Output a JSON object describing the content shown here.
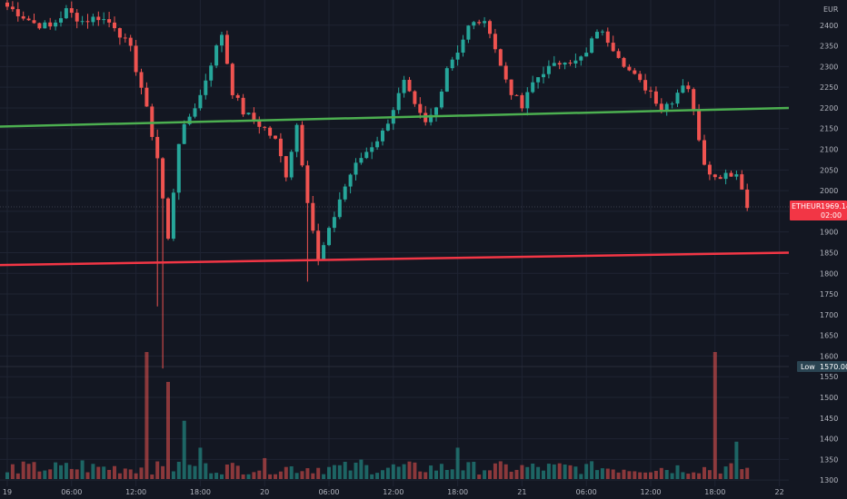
{
  "currency": "EUR",
  "symbol_badge": {
    "label": "ETHEUR",
    "price": "1969.14",
    "countdown": "02:00",
    "color": "#f23645"
  },
  "low_badge": {
    "label": "Low",
    "price": "1570.00",
    "color": "#2a4452"
  },
  "colors": {
    "up": "#26a69a",
    "down": "#ef5350",
    "background": "#131722",
    "grid": "#1f2433"
  },
  "chart_data": {
    "type": "candlestick",
    "title": "",
    "ylim": [
      1285,
      2450
    ],
    "y_ticks": [
      1300,
      1350,
      1400,
      1450,
      1500,
      1550,
      1600,
      1650,
      1700,
      1750,
      1800,
      1850,
      1900,
      1950,
      2000,
      2050,
      2100,
      2150,
      2200,
      2250,
      2300,
      2350,
      2400
    ],
    "x_ticks": [
      "19",
      "06:00",
      "12:00",
      "18:00",
      "20",
      "06:00",
      "12:00",
      "18:00",
      "21",
      "06:00",
      "12:00",
      "18:00",
      "22"
    ],
    "x_tick_index": [
      0,
      12,
      24,
      36,
      48,
      60,
      72,
      84,
      96,
      108,
      120,
      132,
      144
    ],
    "price_path_index": [
      0,
      2,
      5,
      8,
      11,
      14,
      17,
      20,
      23,
      25,
      28,
      30,
      32,
      34,
      36,
      38,
      40,
      42,
      44,
      46,
      48,
      50,
      52,
      54,
      56,
      58,
      60,
      62,
      64,
      66,
      68,
      70,
      72,
      74,
      76,
      78,
      80,
      82,
      84,
      86,
      88,
      90,
      92,
      94,
      96,
      98,
      100,
      102,
      104,
      106,
      108,
      110,
      112,
      114,
      116,
      118,
      120,
      122,
      124,
      126,
      127,
      128,
      130,
      132,
      134,
      136,
      138
    ],
    "price_path_values": [
      2445,
      2430,
      2405,
      2395,
      2435,
      2410,
      2420,
      2400,
      2340,
      2250,
      2080,
      1880,
      2120,
      2180,
      2230,
      2310,
      2380,
      2240,
      2190,
      2170,
      2150,
      2120,
      2040,
      2160,
      1980,
      1830,
      1900,
      1980,
      2040,
      2080,
      2110,
      2140,
      2200,
      2260,
      2200,
      2160,
      2200,
      2300,
      2340,
      2395,
      2410,
      2390,
      2300,
      2240,
      2200,
      2260,
      2290,
      2300,
      2320,
      2310,
      2330,
      2390,
      2365,
      2330,
      2290,
      2260,
      2240,
      2200,
      2220,
      2260,
      2250,
      2190,
      2070,
      2030,
      2045,
      2040,
      1969
    ],
    "sell_line": {
      "start_price": 2155,
      "end_price": 2200,
      "color": "#4caf50"
    },
    "support_line": {
      "start_price": 1820,
      "end_price": 1850,
      "color": "#f23645"
    },
    "volume": {
      "approx_range": [
        0,
        1700
      ],
      "spike_index": [
        0,
        14,
        26,
        30,
        33,
        36,
        48,
        66,
        84,
        110,
        130,
        132,
        136
      ],
      "spike_values": [
        90,
        250,
        1700,
        1300,
        780,
        420,
        280,
        260,
        420,
        120,
        160,
        1700,
        500
      ]
    }
  }
}
